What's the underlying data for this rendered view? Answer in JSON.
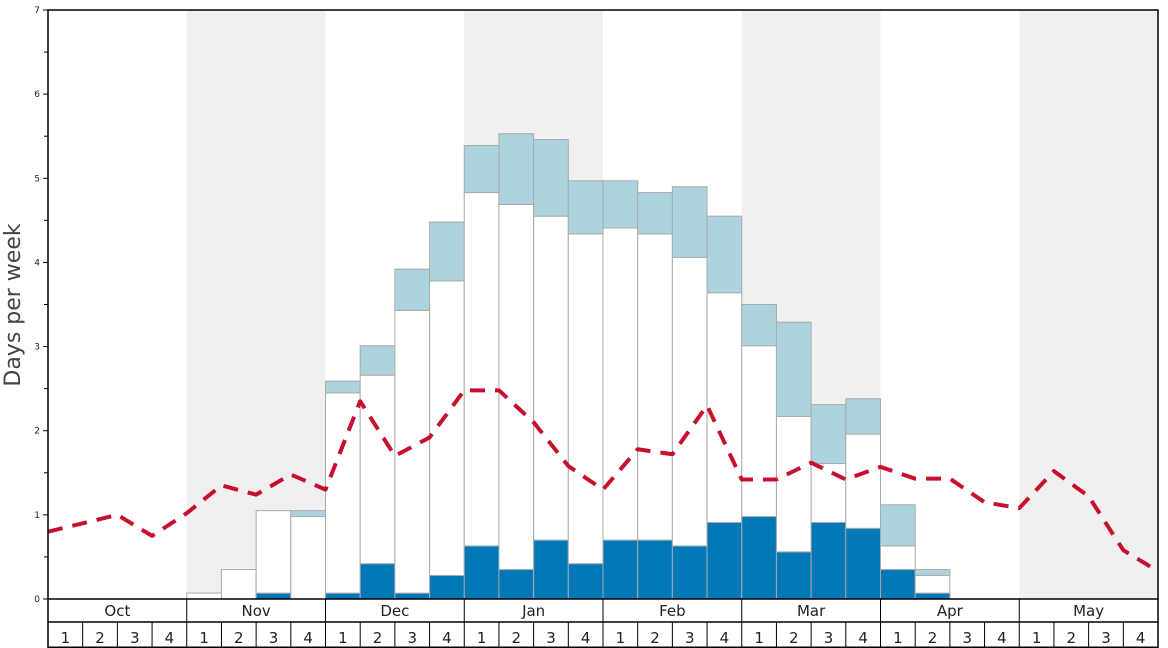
{
  "chart_data": {
    "type": "bar",
    "ylabel": "Days per week",
    "ylim": [
      0,
      7
    ],
    "y_major_ticks": [
      "0",
      "1",
      "2",
      "3",
      "4",
      "5",
      "6",
      "7"
    ],
    "months": [
      "Oct",
      "Nov",
      "Dec",
      "Jan",
      "Feb",
      "Mar",
      "Apr",
      "May"
    ],
    "weeks": [
      "1",
      "2",
      "3",
      "4"
    ],
    "colors": {
      "dark": "#0077b6",
      "white": "#ffffff",
      "light": "#add3de",
      "line": "#c8102e",
      "band": "#f0f0f0",
      "bar_edge": "#aaaaaa"
    },
    "series": [
      {
        "values": [
          0,
          0,
          0,
          0,
          0,
          0,
          0.07,
          0,
          0.07,
          0.42,
          0.07,
          0.28,
          0.63,
          0.35,
          0.7,
          0.42,
          0.7,
          0.7,
          0.63,
          0.91,
          0.98,
          0.56,
          0.91,
          0.84,
          0.35,
          0.07,
          0,
          0,
          0,
          0,
          0,
          0
        ]
      },
      {
        "values": [
          0,
          0,
          0,
          0,
          0.07,
          0.35,
          0.98,
          0.98,
          2.38,
          2.24,
          3.36,
          3.5,
          4.2,
          4.34,
          3.85,
          3.92,
          3.71,
          3.64,
          3.43,
          2.73,
          2.03,
          1.61,
          0.7,
          1.12,
          0.28,
          0.21,
          0,
          0,
          0,
          0,
          0,
          0
        ]
      },
      {
        "values": [
          0,
          0,
          0,
          0,
          0,
          0,
          0,
          0.07,
          0.14,
          0.35,
          0.49,
          0.7,
          0.56,
          0.84,
          0.91,
          0.63,
          0.56,
          0.49,
          0.84,
          0.91,
          0.49,
          1.12,
          0.7,
          0.42,
          0.49,
          0.07,
          0,
          0,
          0,
          0,
          0,
          0
        ]
      },
      {
        "values": [
          0.8,
          0.9,
          1.0,
          0.75,
          1.02,
          1.35,
          1.24,
          1.48,
          1.3,
          2.35,
          1.7,
          1.92,
          2.48,
          2.48,
          2.1,
          1.58,
          1.3,
          1.78,
          1.72,
          2.3,
          1.42,
          1.42,
          1.62,
          1.42,
          1.57,
          1.43,
          1.43,
          1.15,
          1.08,
          1.52,
          1.22,
          0.58,
          0.33
        ]
      }
    ]
  }
}
